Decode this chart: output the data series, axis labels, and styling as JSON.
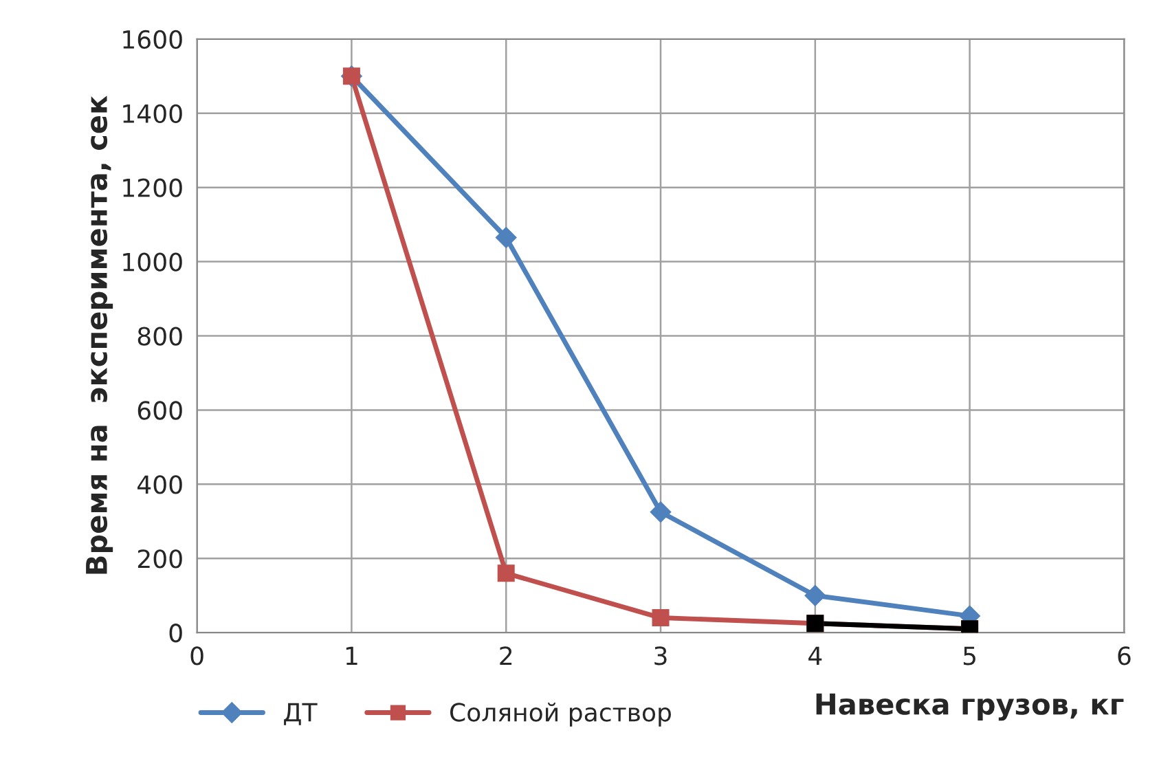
{
  "chart_data": {
    "type": "line",
    "xlabel": "Навеска грузов, кг",
    "ylabel": "Время на  эксперимента, сек",
    "xlim": [
      0,
      6
    ],
    "xticks": [
      0,
      1,
      2,
      3,
      4,
      5,
      6
    ],
    "ylim": [
      0,
      1600
    ],
    "yticks": [
      0,
      200,
      400,
      600,
      800,
      1000,
      1200,
      1400,
      1600
    ],
    "grid": true,
    "legend": "bottom left",
    "series": [
      {
        "name": "ДТ",
        "color": "#4f81bd",
        "marker": "diamond",
        "x": [
          1,
          2,
          3,
          4,
          5
        ],
        "values": [
          1500,
          1065,
          325,
          100,
          45
        ]
      },
      {
        "name": "Соляной раствор",
        "color": "#c0504d",
        "marker": "square",
        "x": [
          1,
          2,
          3,
          4,
          5
        ],
        "values": [
          1500,
          160,
          40,
          25,
          10
        ]
      },
      {
        "color": "#000000",
        "marker": "square",
        "x": [
          4,
          5
        ],
        "values": [
          25,
          10
        ]
      }
    ]
  }
}
